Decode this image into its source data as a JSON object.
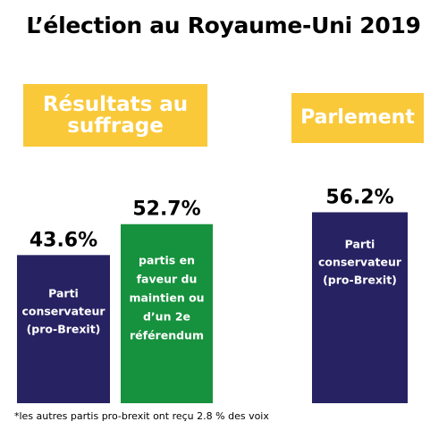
{
  "title": "L’élection au Royaume-Uni 2019",
  "footnote": "*les autres partis pro-brexit ont reçu 2.8 % des voix",
  "colors": {
    "conservative": "#272262",
    "remain": "#16913d",
    "label_bg": "#f9c93a"
  },
  "chart_data": [
    {
      "type": "bar",
      "title": "Résultats au suffrage",
      "unit": "%",
      "categories": [
        "Parti conservateur (pro-Brexit)",
        "partis en faveur du maintien ou d’un 2e référendum"
      ],
      "category_lines": [
        [
          "Parti",
          "conservateur",
          "(pro-Brexit)"
        ],
        [
          "partis en",
          "faveur du",
          "maintien ou",
          "d’un 2e",
          "référendum"
        ]
      ],
      "values": [
        43.6,
        52.7
      ],
      "value_labels": [
        "43.6%",
        "52.7%"
      ],
      "colors": [
        "#272262",
        "#16913d"
      ]
    },
    {
      "type": "bar",
      "title": "Parlement",
      "unit": "%",
      "categories": [
        "Parti conservateur (pro-Brexit)"
      ],
      "category_lines": [
        [
          "Parti",
          "conservateur",
          "(pro-Brexit)"
        ]
      ],
      "values": [
        56.2
      ],
      "value_labels": [
        "56.2%"
      ],
      "colors": [
        "#272262"
      ]
    }
  ]
}
